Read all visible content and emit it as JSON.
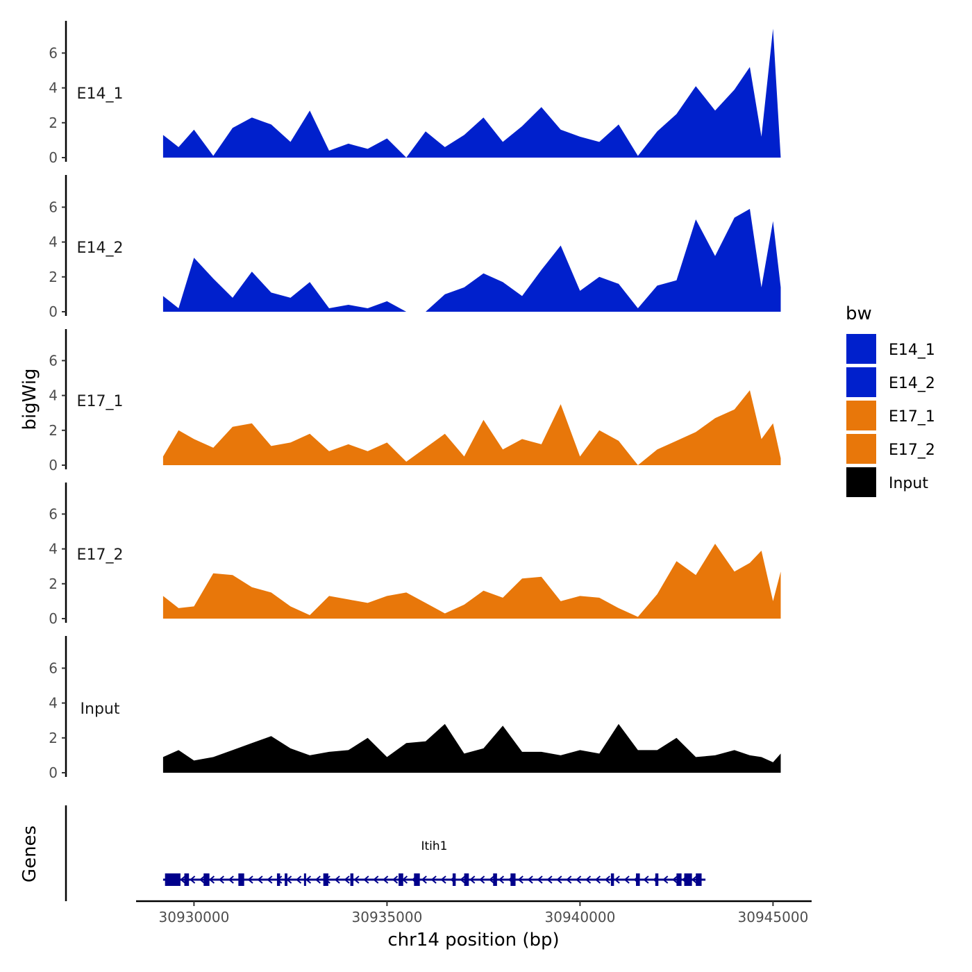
{
  "chart_data": {
    "type": "area",
    "ylabel": "bigWig",
    "xlabel": "chr14 position (bp)",
    "xlim": [
      30928500,
      30946000
    ],
    "x_ticks": [
      30930000,
      30935000,
      30940000,
      30945000
    ],
    "x_tick_labels": [
      "30930000",
      "30935000",
      "30940000",
      "30945000"
    ],
    "ylim": [
      0,
      7.8
    ],
    "y_ticks": [
      0,
      2,
      4,
      6
    ],
    "y_tick_labels": [
      "0",
      "2",
      "4",
      "6"
    ],
    "grid": false,
    "legend": {
      "title": "bw",
      "position": "right",
      "entries": [
        {
          "label": "E14_1",
          "color": "#0020cc"
        },
        {
          "label": "E14_2",
          "color": "#0020cc"
        },
        {
          "label": "E17_1",
          "color": "#e8770a"
        },
        {
          "label": "E17_2",
          "color": "#e8770a"
        },
        {
          "label": "Input",
          "color": "#000000"
        }
      ]
    },
    "series": [
      {
        "name": "E14_1",
        "color": "#0020cc",
        "x": [
          30929200,
          30929600,
          30930000,
          30930500,
          30931000,
          30931500,
          30932000,
          30932500,
          30933000,
          30933500,
          30934000,
          30934500,
          30935000,
          30935500,
          30936000,
          30936500,
          30937000,
          30937500,
          30938000,
          30938500,
          30939000,
          30939500,
          30940000,
          30940500,
          30941000,
          30941500,
          30942000,
          30942500,
          30943000,
          30943500,
          30944000,
          30944400,
          30944700,
          30945000,
          30945200
        ],
        "values": [
          1.3,
          0.6,
          1.6,
          0.1,
          1.7,
          2.3,
          1.9,
          0.9,
          2.7,
          0.4,
          0.8,
          0.5,
          1.1,
          0.0,
          1.5,
          0.6,
          1.3,
          2.3,
          0.9,
          1.8,
          2.9,
          1.6,
          1.2,
          0.9,
          1.9,
          0.1,
          1.5,
          2.5,
          4.1,
          2.7,
          3.9,
          5.2,
          1.2,
          7.4,
          0.0
        ]
      },
      {
        "name": "E14_2",
        "color": "#0020cc",
        "x": [
          30929200,
          30929600,
          30930000,
          30930500,
          30931000,
          30931500,
          30932000,
          30932500,
          30933000,
          30933500,
          30934000,
          30934500,
          30935000,
          30935500,
          30936000,
          30936500,
          30937000,
          30937500,
          30938000,
          30938500,
          30939000,
          30939500,
          30940000,
          30940500,
          30941000,
          30941500,
          30942000,
          30942500,
          30943000,
          30943500,
          30944000,
          30944400,
          30944700,
          30945000,
          30945200
        ],
        "values": [
          0.9,
          0.2,
          3.1,
          1.9,
          0.8,
          2.3,
          1.1,
          0.8,
          1.7,
          0.2,
          0.4,
          0.2,
          0.6,
          0.0,
          0.0,
          1.0,
          1.4,
          2.2,
          1.7,
          0.9,
          2.4,
          3.8,
          1.2,
          2.0,
          1.6,
          0.2,
          1.5,
          1.8,
          5.3,
          3.2,
          5.4,
          5.9,
          1.4,
          5.2,
          1.4
        ]
      },
      {
        "name": "E17_1",
        "color": "#e8770a",
        "x": [
          30929200,
          30929600,
          30930000,
          30930500,
          30931000,
          30931500,
          30932000,
          30932500,
          30933000,
          30933500,
          30934000,
          30934500,
          30935000,
          30935500,
          30936000,
          30936500,
          30937000,
          30937500,
          30938000,
          30938500,
          30939000,
          30939500,
          30940000,
          30940500,
          30941000,
          30941500,
          30942000,
          30942500,
          30943000,
          30943500,
          30944000,
          30944400,
          30944700,
          30945000,
          30945200
        ],
        "values": [
          0.5,
          2.0,
          1.5,
          1.0,
          2.2,
          2.4,
          1.1,
          1.3,
          1.8,
          0.8,
          1.2,
          0.8,
          1.3,
          0.2,
          1.0,
          1.8,
          0.5,
          2.6,
          0.9,
          1.5,
          1.2,
          3.5,
          0.5,
          2.0,
          1.4,
          0.0,
          0.9,
          1.4,
          1.9,
          2.7,
          3.2,
          4.3,
          1.5,
          2.4,
          0.4
        ]
      },
      {
        "name": "E17_2",
        "color": "#e8770a",
        "x": [
          30929200,
          30929600,
          30930000,
          30930500,
          30931000,
          30931500,
          30932000,
          30932500,
          30933000,
          30933500,
          30934000,
          30934500,
          30935000,
          30935500,
          30936000,
          30936500,
          30937000,
          30937500,
          30938000,
          30938500,
          30939000,
          30939500,
          30940000,
          30940500,
          30941000,
          30941500,
          30942000,
          30942500,
          30943000,
          30943500,
          30944000,
          30944400,
          30944700,
          30945000,
          30945200
        ],
        "values": [
          1.3,
          0.6,
          0.7,
          2.6,
          2.5,
          1.8,
          1.5,
          0.7,
          0.2,
          1.3,
          1.1,
          0.9,
          1.3,
          1.5,
          0.9,
          0.3,
          0.8,
          1.6,
          1.2,
          2.3,
          2.4,
          1.0,
          1.3,
          1.2,
          0.6,
          0.1,
          1.4,
          3.3,
          2.5,
          4.3,
          2.7,
          3.2,
          3.9,
          1.0,
          2.7
        ]
      },
      {
        "name": "Input",
        "color": "#000000",
        "x": [
          30929200,
          30929600,
          30930000,
          30930500,
          30931000,
          30931500,
          30932000,
          30932500,
          30933000,
          30933500,
          30934000,
          30934500,
          30935000,
          30935500,
          30936000,
          30936500,
          30937000,
          30937500,
          30938000,
          30938500,
          30939000,
          30939500,
          30940000,
          30940500,
          30941000,
          30941500,
          30942000,
          30942500,
          30943000,
          30943500,
          30944000,
          30944400,
          30944700,
          30945000,
          30945200
        ],
        "values": [
          0.9,
          1.3,
          0.7,
          0.9,
          1.3,
          1.7,
          2.1,
          1.4,
          1.0,
          1.2,
          1.3,
          2.0,
          0.9,
          1.7,
          1.8,
          2.8,
          1.1,
          1.4,
          2.7,
          1.2,
          1.2,
          1.0,
          1.3,
          1.1,
          2.8,
          1.3,
          1.3,
          2.0,
          0.9,
          1.0,
          1.3,
          1.0,
          0.9,
          0.6,
          1.1
        ]
      }
    ],
    "genes_track": {
      "label": "Genes",
      "gene_name": "Itih1",
      "strand": "-",
      "start": 30929200,
      "end": 30943250,
      "color": "#00008b",
      "exon_starts": [
        30929250,
        30929750,
        30930250,
        30931150,
        30932150,
        30932350,
        30932850,
        30933350,
        30934050,
        30935300,
        30935700,
        30936700,
        30937000,
        30937750,
        30938200,
        30940800,
        30941450,
        30941950,
        30942500,
        30942700,
        30943000
      ],
      "exon_ends": [
        30929650,
        30929870,
        30930400,
        30931300,
        30932230,
        30932420,
        30932900,
        30933480,
        30934130,
        30935420,
        30935850,
        30936780,
        30937120,
        30937850,
        30938330,
        30940880,
        30941550,
        30942030,
        30942630,
        30942900,
        30943150
      ]
    }
  }
}
